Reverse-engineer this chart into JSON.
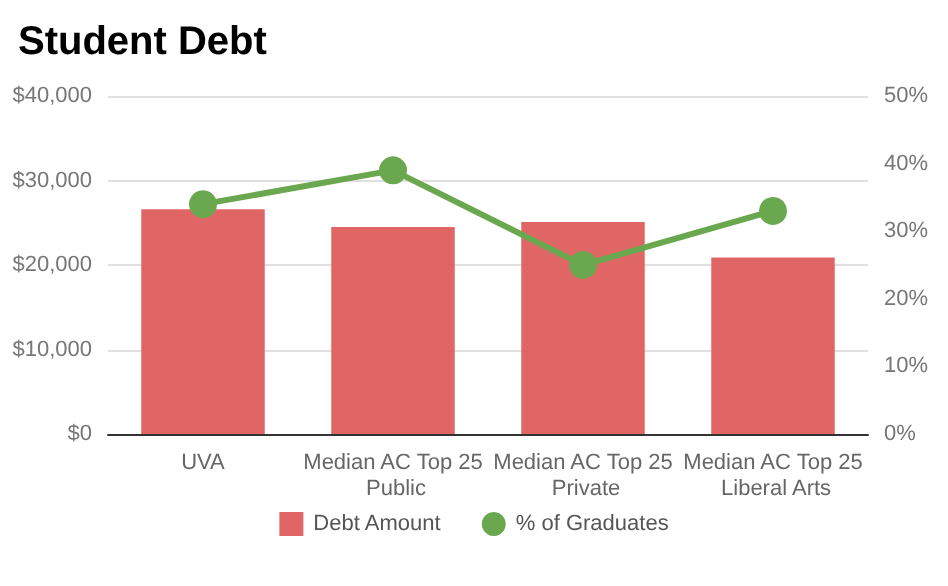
{
  "chart_data": {
    "type": "bar",
    "title": "Student Debt",
    "categories": [
      "UVA",
      "Median AC Top 25 Public",
      "Median AC Top 25 Private",
      "Median AC Top 25 Liberal Arts"
    ],
    "series": [
      {
        "name": "Debt Amount",
        "color": "#e06666",
        "values": [
          26600,
          24500,
          25100,
          20900
        ]
      },
      {
        "name": "% of Graduates",
        "type": "line",
        "axis": "y2",
        "color": "#6aa84f",
        "values": [
          34,
          39,
          25,
          33
        ]
      }
    ],
    "ylim": [
      0,
      40000
    ],
    "yticks": [
      {
        "value": 0,
        "label": "$0"
      },
      {
        "value": 10000,
        "label": "$10,000"
      },
      {
        "value": 20000,
        "label": "$20,000"
      },
      {
        "value": 30000,
        "label": "$30,000"
      },
      {
        "value": 40000,
        "label": "$40,000"
      }
    ],
    "y2lim": [
      0,
      50
    ],
    "y2ticks": [
      {
        "value": 0,
        "label": "0%"
      },
      {
        "value": 10,
        "label": "10%"
      },
      {
        "value": 20,
        "label": "20%"
      },
      {
        "value": 30,
        "label": "30%"
      },
      {
        "value": 40,
        "label": "40%"
      },
      {
        "value": 50,
        "label": "50%"
      }
    ],
    "grid": "y",
    "legend": "bottom",
    "marker": "circle"
  }
}
